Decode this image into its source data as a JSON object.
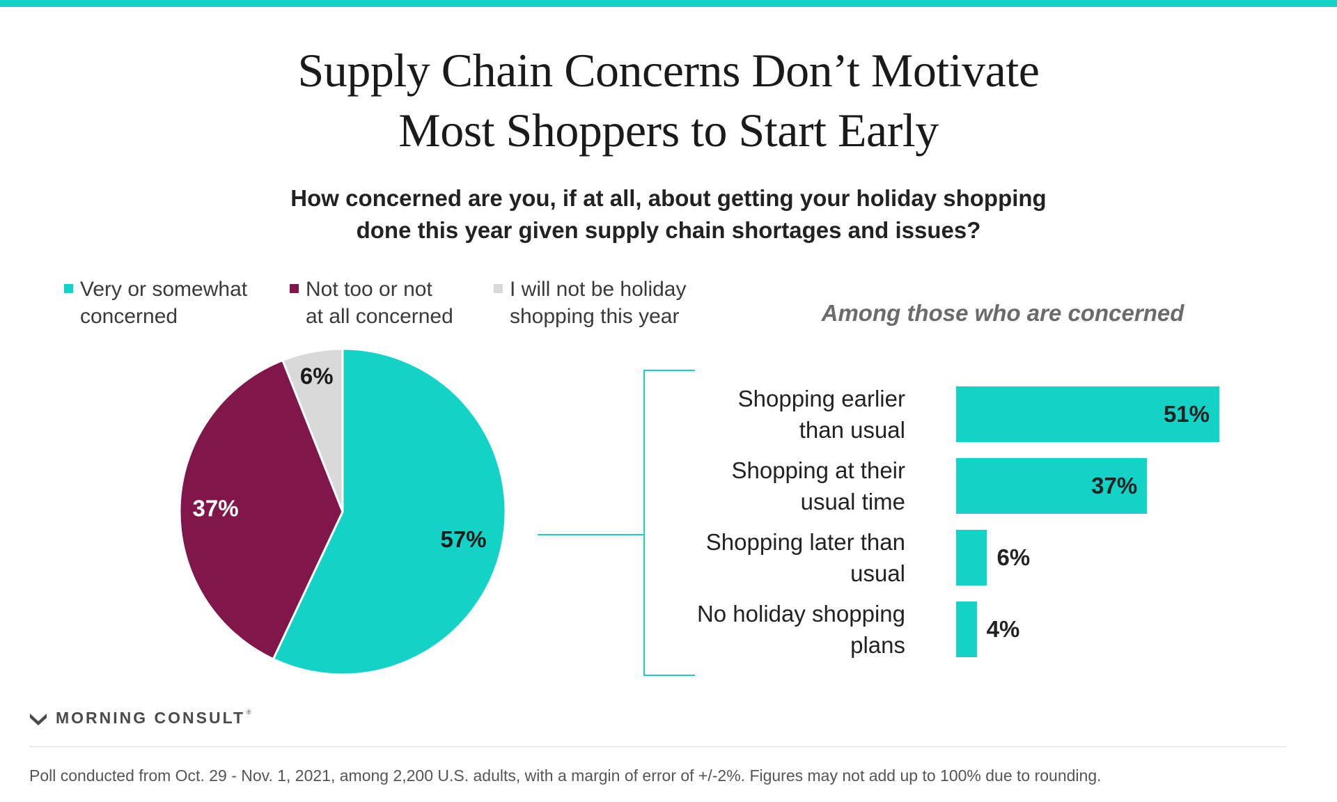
{
  "colors": {
    "accent": "#12d3c6",
    "concerned": "#12d3c6",
    "not_concerned": "#80164a",
    "not_shopping": "#d9d9d9"
  },
  "title": {
    "line1": "Supply Chain Concerns Don’t Motivate",
    "line2": "Most Shoppers to Start Early"
  },
  "subtitle": {
    "line1": "How concerned are you, if at all, about getting your holiday shopping",
    "line2": "done this year given supply chain shortages and issues?"
  },
  "legend": [
    {
      "line1": "Very or somewhat",
      "line2": "concerned"
    },
    {
      "line1": "Not too or not",
      "line2": "at all concerned"
    },
    {
      "line1": "I will not be holiday",
      "line2": "shopping this year"
    }
  ],
  "right_caption": "Among those who are concerned",
  "chart_data": [
    {
      "type": "pie",
      "title": "How concerned are you, if at all, about getting your holiday shopping done this year given supply chain shortages and issues?",
      "slices": [
        {
          "name": "Very or somewhat concerned",
          "value": 57,
          "label": "57%",
          "color": "#12d3c6"
        },
        {
          "name": "Not too or not at all concerned",
          "value": 37,
          "label": "37%",
          "color": "#80164a"
        },
        {
          "name": "I will not be holiday shopping this year",
          "value": 6,
          "label": "6%",
          "color": "#d9d9d9"
        }
      ],
      "legend": "top"
    },
    {
      "type": "bar",
      "orientation": "horizontal",
      "title": "Among those who are concerned",
      "categories": [
        [
          "Shopping earlier",
          "than usual"
        ],
        [
          "Shopping at their",
          "usual time"
        ],
        [
          "Shopping later than",
          "usual"
        ],
        [
          "No holiday shopping",
          "plans"
        ]
      ],
      "values": [
        51,
        37,
        6,
        4
      ],
      "value_labels": [
        "51%",
        "37%",
        "6%",
        "4%"
      ],
      "xlim": [
        0,
        51
      ]
    }
  ],
  "brand": {
    "name": "MORNING CONSULT",
    "reg": "®"
  },
  "footnote": "Poll conducted from Oct. 29 - Nov. 1, 2021, among 2,200 U.S. adults, with a margin of error of +/-2%. Figures may not add up to 100% due to rounding."
}
